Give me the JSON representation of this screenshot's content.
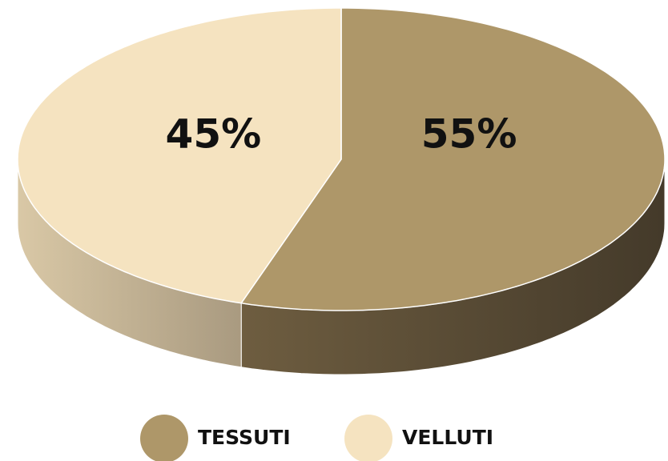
{
  "chart_data": {
    "type": "pie",
    "categories": [
      "TESSUTI",
      "VELLUTI"
    ],
    "values": [
      55,
      45
    ],
    "value_labels": [
      "55%",
      "45%"
    ],
    "colors": [
      "#ae9769",
      "#f5e3c0"
    ],
    "side_colors": [
      [
        "#6e5d40",
        "#443a2a"
      ],
      [
        "#d9c8a6",
        "#a99a80"
      ]
    ]
  }
}
